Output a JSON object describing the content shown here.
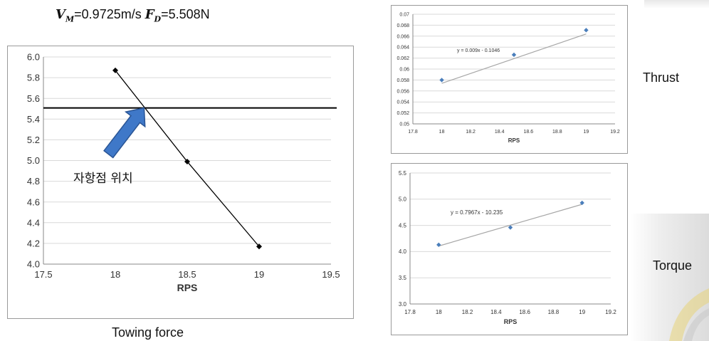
{
  "header": {
    "vm_symbol": "V",
    "vm_sub": "M",
    "vm_value": "=0.9725m/s",
    "fd_symbol": "F",
    "fd_sub": "D",
    "fd_value": "=5.508N"
  },
  "captions": {
    "towing": "Towing force",
    "thrust": "Thrust",
    "torque": "Torque"
  },
  "colors": {
    "series_blue": "#4a7ebb",
    "trend_gray": "#a6a6a6",
    "grid": "#d9d9d9",
    "arrow_blue": "#3f78c8",
    "arrow_edge": "#2a5595"
  },
  "chart_data": [
    {
      "type": "line",
      "caption": "Towing force",
      "xlabel": "RPS",
      "ylabel": "",
      "x": [
        18,
        18.5,
        19
      ],
      "series": [
        {
          "values": [
            5.87,
            4.99,
            4.17
          ]
        }
      ],
      "xlim": [
        17.5,
        19.5
      ],
      "ylim": [
        4.0,
        6.0
      ],
      "xticks": [
        "17.5",
        "18",
        "18.5",
        "19",
        "19.5"
      ],
      "yticks": [
        "4.0",
        "4.2",
        "4.4",
        "4.6",
        "4.8",
        "5.0",
        "5.2",
        "5.4",
        "5.6",
        "5.8",
        "6.0"
      ],
      "reference_line": {
        "y": 5.508
      },
      "annotation": {
        "text": "자항점 위치",
        "points_to": {
          "x": 18.2,
          "y": 5.508
        }
      },
      "grid": "horizontal",
      "legend": "none"
    },
    {
      "type": "scatter",
      "caption": "Thrust",
      "xlabel": "RPS",
      "ylabel": "",
      "x": [
        18,
        18.5,
        19
      ],
      "series": [
        {
          "values": [
            0.058,
            0.0626,
            0.0671
          ]
        }
      ],
      "trendline": {
        "equation": "y = 0.009x - 0.1046",
        "slope": 0.009,
        "intercept": -0.1046
      },
      "xlim": [
        17.8,
        19.2
      ],
      "ylim": [
        0.05,
        0.07
      ],
      "xticks": [
        "17.8",
        "18",
        "18.2",
        "18.4",
        "18.6",
        "18.8",
        "19",
        "19.2"
      ],
      "yticks": [
        "0.05",
        "0.052",
        "0.054",
        "0.056",
        "0.058",
        "0.06",
        "0.062",
        "0.064",
        "0.066",
        "0.068",
        "0.07"
      ],
      "grid": "horizontal",
      "legend": "none"
    },
    {
      "type": "scatter",
      "caption": "Torque",
      "xlabel": "RPS",
      "ylabel": "",
      "x": [
        18,
        18.5,
        19
      ],
      "series": [
        {
          "values": [
            4.13,
            4.46,
            4.93
          ]
        }
      ],
      "trendline": {
        "equation": "y = 0.7967x - 10.235",
        "slope": 0.7967,
        "intercept": -10.235
      },
      "xlim": [
        17.8,
        19.2
      ],
      "ylim": [
        3.0,
        5.5
      ],
      "xticks": [
        "17.8",
        "18",
        "18.2",
        "18.4",
        "18.6",
        "18.8",
        "19",
        "19.2"
      ],
      "yticks": [
        "3.0",
        "3.5",
        "4.0",
        "4.5",
        "5.0",
        "5.5"
      ],
      "grid": "horizontal",
      "legend": "none"
    }
  ]
}
